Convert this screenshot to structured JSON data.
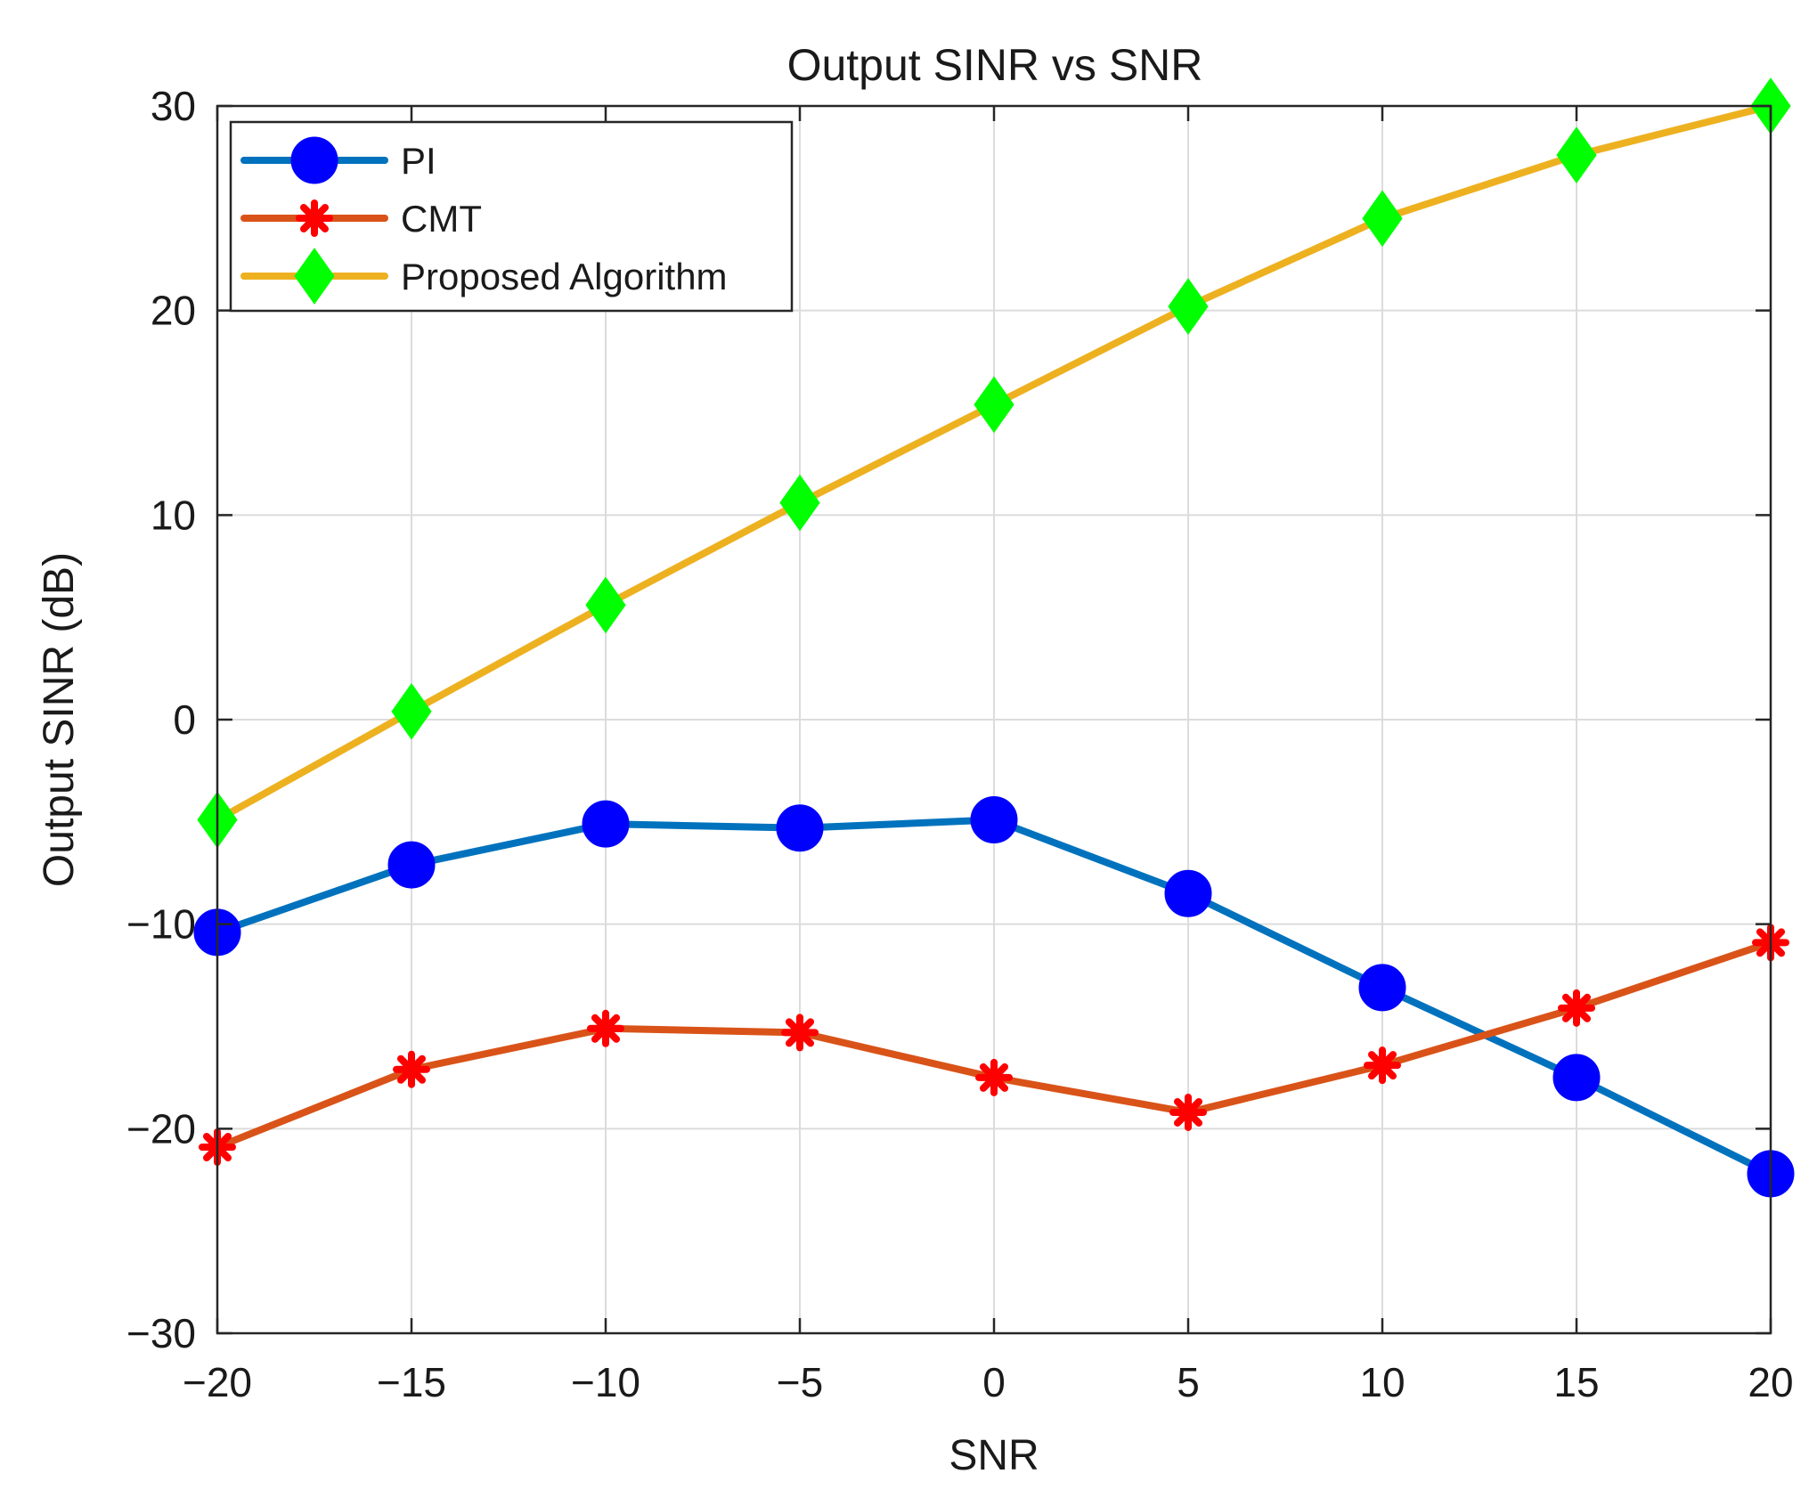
{
  "chart_data": {
    "type": "line",
    "title": "Output SINR vs SNR",
    "xlabel": "SNR",
    "ylabel": "Output SINR (dB)",
    "xlim": [
      -20,
      20
    ],
    "ylim": [
      -30,
      30
    ],
    "x": [
      -20,
      -15,
      -10,
      -5,
      0,
      5,
      10,
      15,
      20
    ],
    "xticks": [
      -20,
      -15,
      -10,
      -5,
      0,
      5,
      10,
      15,
      20
    ],
    "xtick_labels": [
      "−20",
      "−15",
      "−10",
      "−5",
      "0",
      "5",
      "10",
      "15",
      "20"
    ],
    "yticks": [
      -30,
      -20,
      -10,
      0,
      10,
      20,
      30
    ],
    "ytick_labels": [
      "−30",
      "−20",
      "−10",
      "0",
      "10",
      "20",
      "30"
    ],
    "grid": true,
    "legend_position": "top-left",
    "series": [
      {
        "name": "PI",
        "color": "#0072BD",
        "marker": "circle",
        "marker_color": "#0000FF",
        "values": [
          -10.4,
          -7.1,
          -5.1,
          -5.3,
          -4.9,
          -8.5,
          -13.1,
          -17.5,
          -22.2
        ]
      },
      {
        "name": "CMT",
        "color": "#D95319",
        "marker": "asterisk",
        "marker_color": "#FF0000",
        "values": [
          -20.9,
          -17.1,
          -15.1,
          -15.3,
          -17.5,
          -19.2,
          -16.9,
          -14.1,
          -10.9
        ]
      },
      {
        "name": "Proposed Algorithm",
        "color": "#EDB120",
        "marker": "diamond",
        "marker_color": "#00FF00",
        "values": [
          -4.9,
          0.4,
          5.6,
          10.6,
          15.4,
          20.2,
          24.5,
          27.6,
          30.0
        ]
      }
    ]
  }
}
